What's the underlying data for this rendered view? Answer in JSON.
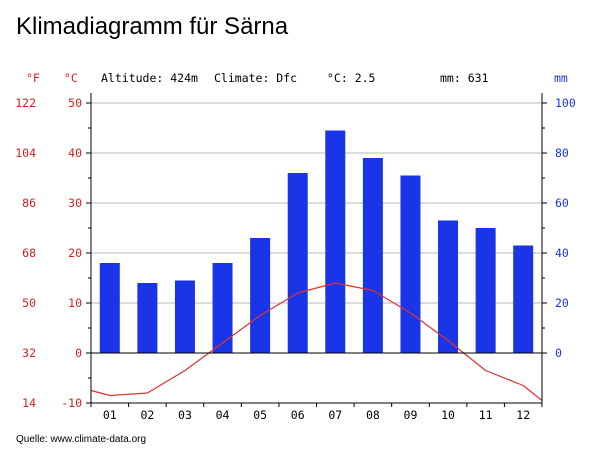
{
  "title": "Klimadiagramm für Särna",
  "source": "Quelle: www.climate-data.org",
  "header": {
    "unit_f": "°F",
    "unit_c": "°C",
    "unit_mm": "mm",
    "altitude": "Altitude: 424m",
    "climate": "Climate: Dfc",
    "mean_temp": "°C: 2.5",
    "precip_total": "mm: 631"
  },
  "colors": {
    "bars": "#1a35e8",
    "line": "#e03030",
    "temp_axis": "#d42020",
    "precip_axis": "#1a35e8"
  },
  "chart_data": {
    "type": "bar+line",
    "categories": [
      "01",
      "02",
      "03",
      "04",
      "05",
      "06",
      "07",
      "08",
      "09",
      "10",
      "11",
      "12"
    ],
    "series": [
      {
        "axis": "mm",
        "type": "bar",
        "values": [
          36,
          28,
          29,
          36,
          46,
          72,
          89,
          78,
          71,
          53,
          50,
          43
        ]
      },
      {
        "axis": "°C",
        "type": "line",
        "values": [
          -8.5,
          -8.0,
          -3.5,
          2.0,
          7.5,
          12.0,
          14.0,
          12.5,
          8.0,
          2.5,
          -3.5,
          -6.5
        ]
      }
    ],
    "temp_edges": [
      -7.5,
      -9.5
    ],
    "c_ticks": [
      "-10",
      "0",
      "10",
      "20",
      "30",
      "40",
      "50"
    ],
    "f_ticks": [
      "14",
      "32",
      "50",
      "68",
      "86",
      "104",
      "122"
    ],
    "mm_ticks": [
      "0",
      "20",
      "40",
      "60",
      "80",
      "100"
    ],
    "c_range": [
      -10,
      50
    ],
    "mm_range": [
      0,
      100
    ],
    "grid": true
  }
}
